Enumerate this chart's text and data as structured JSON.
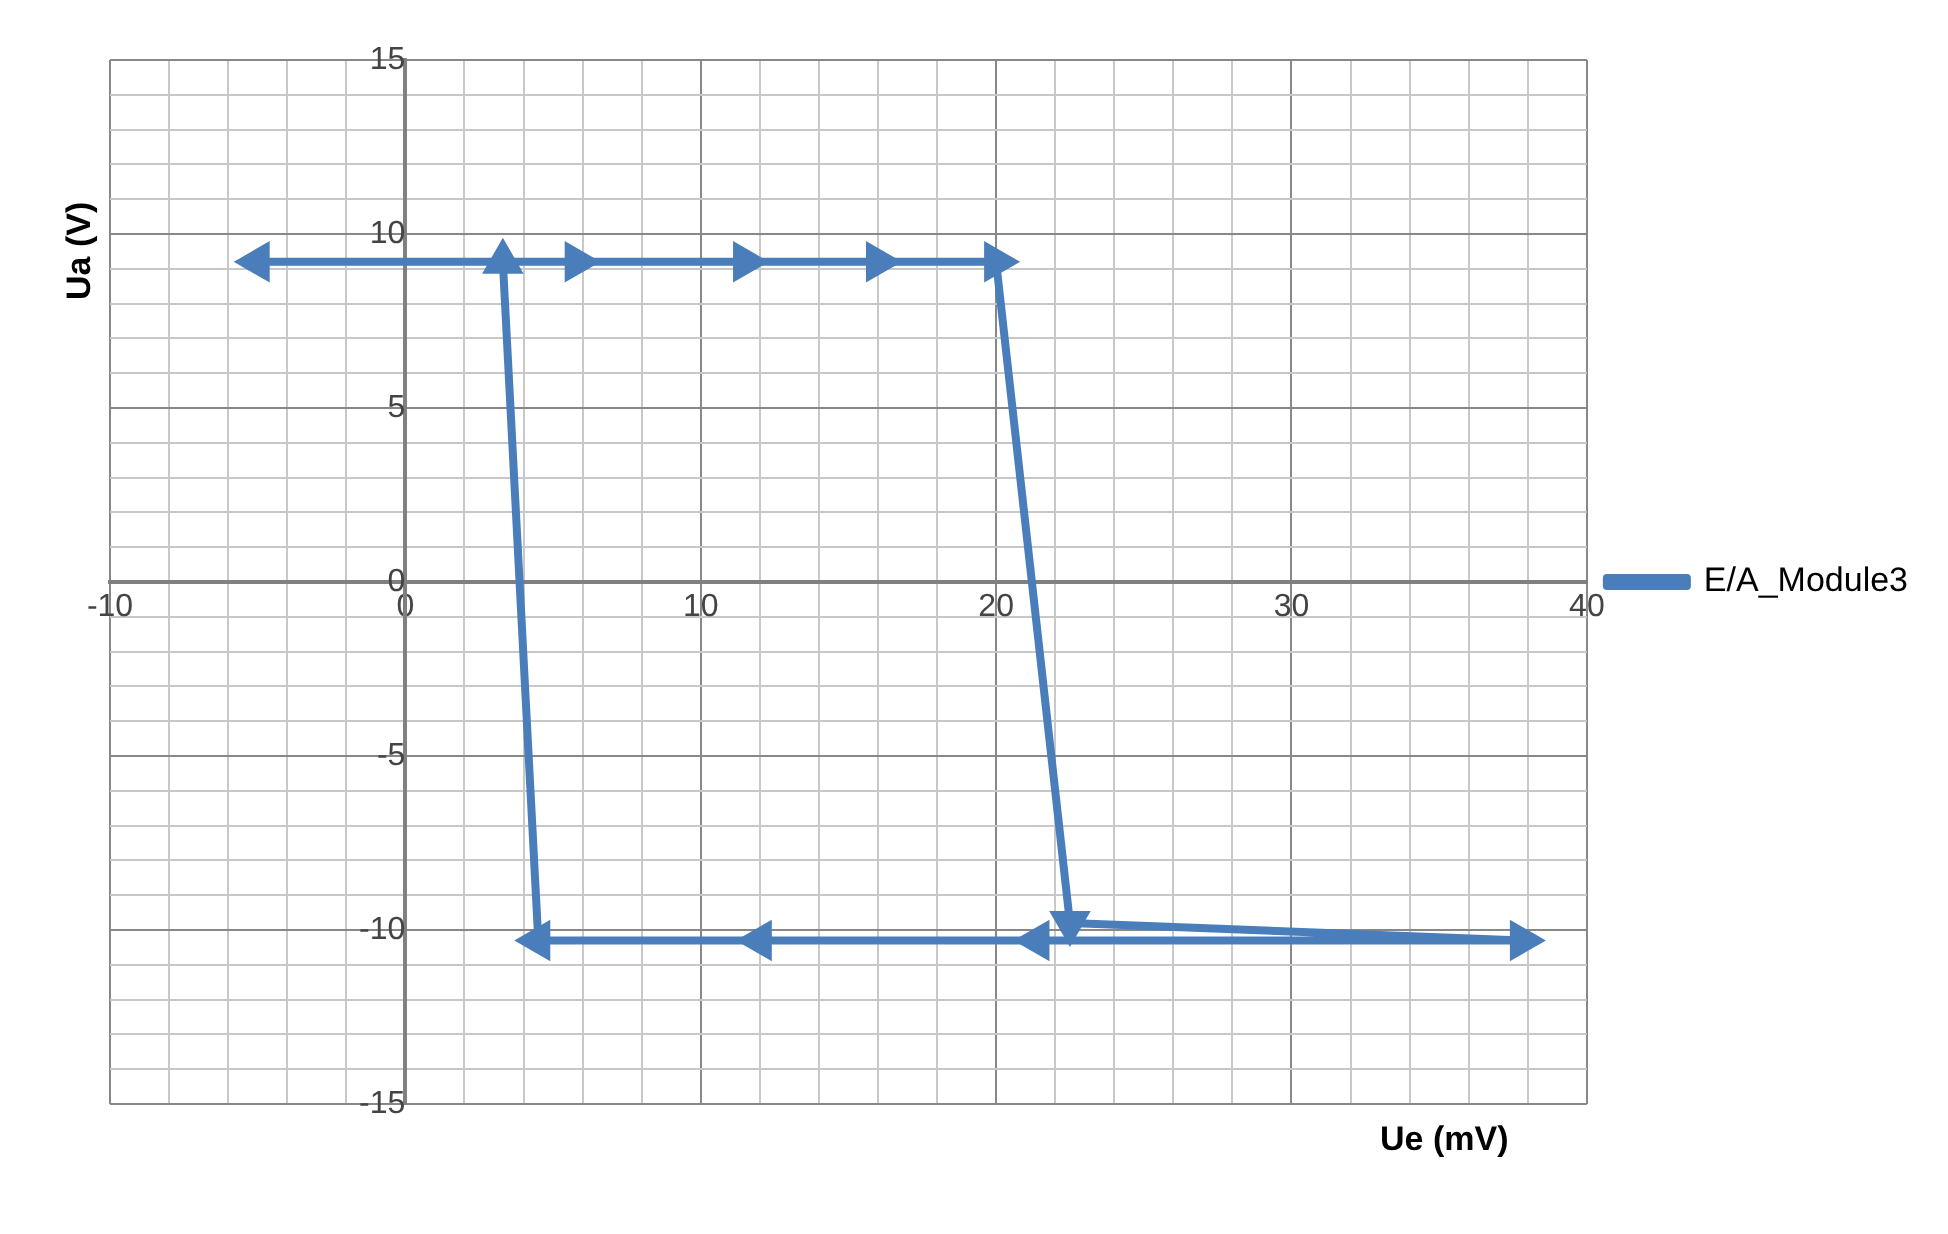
{
  "chart_data": {
    "type": "line",
    "xlabel": "Ue  (mV)",
    "ylabel": "Ua (V)",
    "xlim": [
      -10,
      40
    ],
    "ylim": [
      -15,
      15
    ],
    "xticks": [
      -10,
      {
        "value": -8,
        "label": null
      },
      {
        "value": -6,
        "label": null
      },
      {
        "value": -4,
        "label": null
      },
      {
        "value": -2,
        "label": null
      },
      0,
      {
        "value": 2,
        "label": null
      },
      {
        "value": 4,
        "label": null
      },
      {
        "value": 6,
        "label": null
      },
      {
        "value": 8,
        "label": null
      },
      10,
      {
        "value": 12,
        "label": null
      },
      {
        "value": 14,
        "label": null
      },
      {
        "value": 16,
        "label": null
      },
      {
        "value": 18,
        "label": null
      },
      20,
      {
        "value": 22,
        "label": null
      },
      {
        "value": 24,
        "label": null
      },
      {
        "value": 26,
        "label": null
      },
      {
        "value": 28,
        "label": null
      },
      30,
      {
        "value": 32,
        "label": null
      },
      {
        "value": 34,
        "label": null
      },
      {
        "value": 36,
        "label": null
      },
      {
        "value": 38,
        "label": null
      },
      40
    ],
    "yticks": [
      -15,
      {
        "value": -14,
        "label": null
      },
      {
        "value": -13,
        "label": null
      },
      {
        "value": -12,
        "label": null
      },
      {
        "value": -11,
        "label": null
      },
      -10,
      {
        "value": -9,
        "label": null
      },
      {
        "value": -8,
        "label": null
      },
      {
        "value": -7,
        "label": null
      },
      {
        "value": -6,
        "label": null
      },
      -5,
      {
        "value": -4,
        "label": null
      },
      {
        "value": -3,
        "label": null
      },
      {
        "value": -2,
        "label": null
      },
      {
        "value": -1,
        "label": null
      },
      0,
      {
        "value": 1,
        "label": null
      },
      {
        "value": 2,
        "label": null
      },
      {
        "value": 3,
        "label": null
      },
      {
        "value": 4,
        "label": null
      },
      5,
      {
        "value": 6,
        "label": null
      },
      {
        "value": 7,
        "label": null
      },
      {
        "value": 8,
        "label": null
      },
      {
        "value": 9,
        "label": null
      },
      10,
      {
        "value": 11,
        "label": null
      },
      {
        "value": 12,
        "label": null
      },
      {
        "value": 13,
        "label": null
      },
      {
        "value": 14,
        "label": null
      },
      15
    ],
    "grid": true,
    "legend": "right",
    "marker": "triangle",
    "line_style": "solid",
    "series": [
      {
        "name": "E/A_Module3",
        "color": "#4a7ebb",
        "x": [
          3.3,
          5.8,
          11.5,
          16,
          20,
          22.5,
          37.8,
          21.4,
          12,
          4.5,
          3.3,
          -5
        ],
        "values": [
          9.2,
          9.2,
          9.2,
          9.2,
          9.2,
          -9.8,
          -10.3,
          -10.3,
          -10.3,
          -10.3,
          9.2,
          9.2
        ]
      }
    ]
  }
}
